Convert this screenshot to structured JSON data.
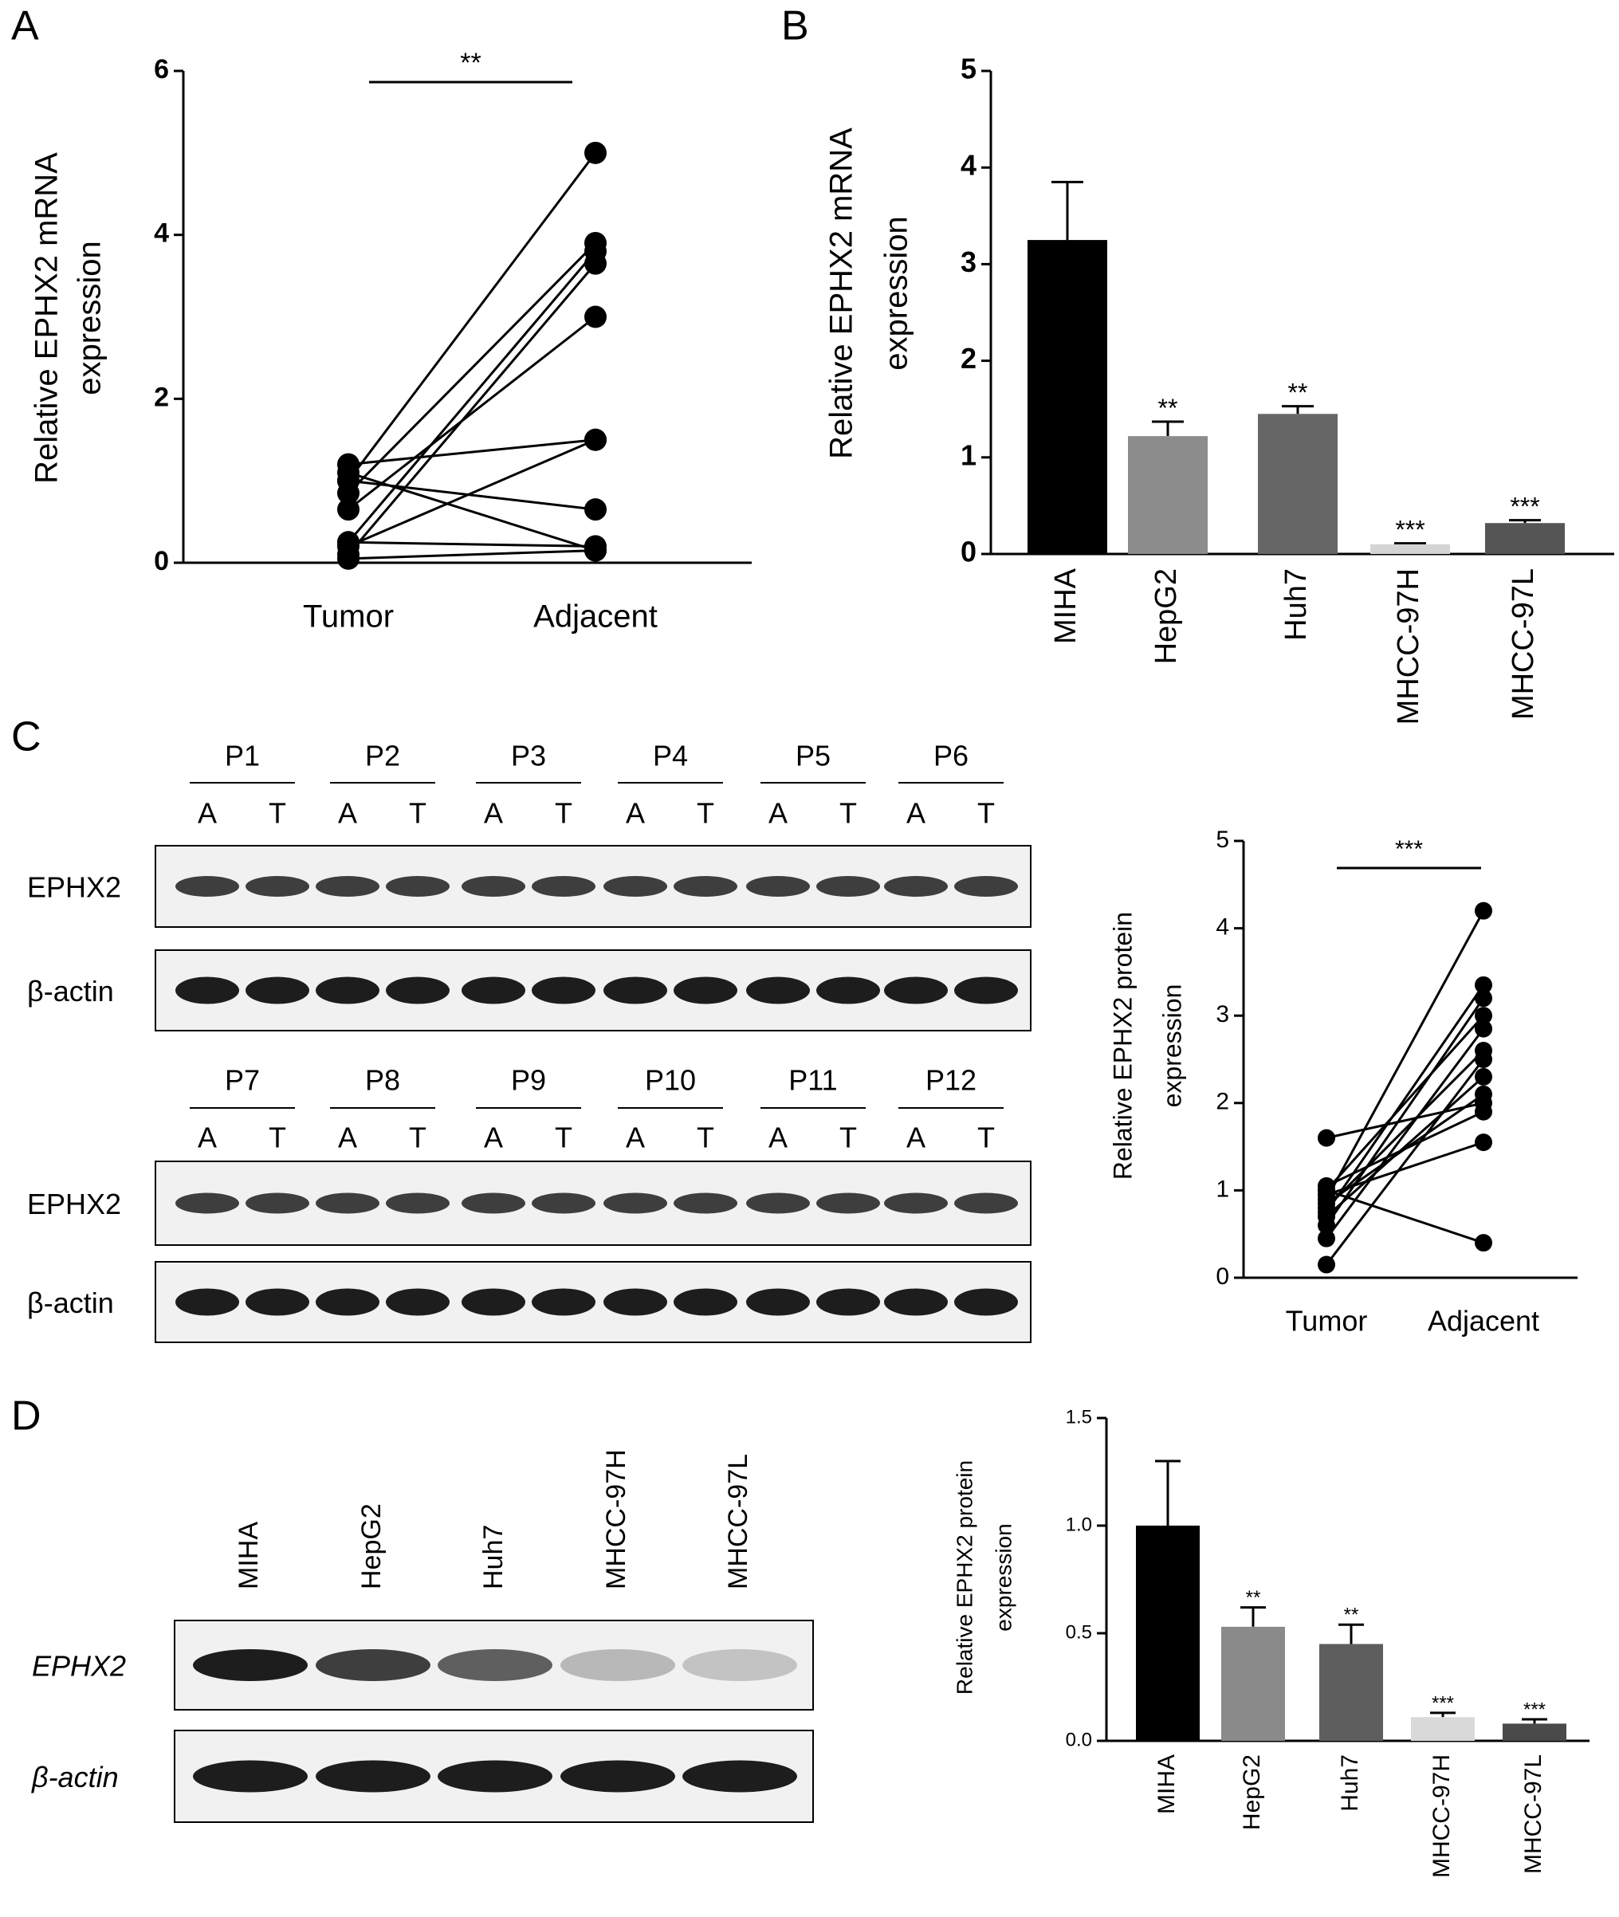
{
  "panel_labels": [
    "A",
    "B",
    "C",
    "D"
  ],
  "blot_c": {
    "groups": [
      [
        "P1",
        "P2",
        "P3",
        "P4",
        "P5",
        "P6"
      ],
      [
        "P7",
        "P8",
        "P9",
        "P10",
        "P11",
        "P12"
      ]
    ],
    "lane_labels": [
      "A",
      "T"
    ],
    "rows": [
      "EPHX2",
      "β-actin"
    ]
  },
  "blot_d": {
    "lanes": [
      "MIHA",
      "HepG2",
      "Huh7",
      "MHCC-97H",
      "MHCC-97L"
    ],
    "rows": [
      "EPHX2",
      "β-actin"
    ]
  },
  "chart_data": [
    {
      "type": "paired",
      "categories": [
        "Tumor",
        "Adjacent"
      ],
      "ylabel": [
        "Relative EPHX2 mRNA",
        "expression"
      ],
      "ylim": [
        0,
        6
      ],
      "yticks": [
        0,
        2,
        4,
        6
      ],
      "annotation": "**",
      "color": "#000000",
      "series": [
        {
          "values": [
            1.0,
            5.0
          ]
        },
        {
          "values": [
            0.85,
            3.9
          ]
        },
        {
          "values": [
            0.25,
            3.8
          ]
        },
        {
          "values": [
            0.1,
            3.65
          ]
        },
        {
          "values": [
            0.65,
            3.0
          ]
        },
        {
          "values": [
            1.2,
            1.5
          ]
        },
        {
          "values": [
            0.2,
            1.5
          ]
        },
        {
          "values": [
            1.0,
            0.65
          ]
        },
        {
          "values": [
            1.1,
            0.15
          ]
        },
        {
          "values": [
            0.25,
            0.2
          ]
        },
        {
          "values": [
            0.05,
            0.15
          ]
        }
      ]
    },
    {
      "type": "bar",
      "categories": [
        "MIHA",
        "HepG2",
        "Huh7",
        "MHCC-97H",
        "MHCC-97L"
      ],
      "ylabel": [
        "Relative EPHX2 mRNA",
        "expression"
      ],
      "values": [
        3.25,
        1.22,
        1.45,
        0.1,
        0.32
      ],
      "errors": [
        0.6,
        0.15,
        0.08,
        0.01,
        0.03
      ],
      "annotations": [
        null,
        "**",
        "**",
        "***",
        "***"
      ],
      "colors": [
        "#000000",
        "#8c8c8c",
        "#666666",
        "#d4d4d4",
        "#555555"
      ],
      "ylim": [
        0,
        5
      ],
      "yticks": [
        0,
        1,
        2,
        3,
        4,
        5
      ]
    },
    {
      "type": "paired",
      "categories": [
        "Tumor",
        "Adjacent"
      ],
      "ylabel": [
        "Relative EPHX2 protein",
        "expression"
      ],
      "ylim": [
        0,
        5
      ],
      "yticks": [
        0,
        1,
        2,
        3,
        4,
        5
      ],
      "annotation": "***",
      "color": "#000000",
      "series": [
        {
          "values": [
            0.9,
            4.2
          ]
        },
        {
          "values": [
            0.75,
            3.35
          ]
        },
        {
          "values": [
            0.6,
            3.2
          ]
        },
        {
          "values": [
            1.0,
            3.0
          ]
        },
        {
          "values": [
            0.45,
            2.85
          ]
        },
        {
          "values": [
            0.8,
            2.6
          ]
        },
        {
          "values": [
            0.15,
            2.5
          ]
        },
        {
          "values": [
            0.7,
            2.3
          ]
        },
        {
          "values": [
            0.85,
            2.1
          ]
        },
        {
          "values": [
            1.6,
            2.0
          ]
        },
        {
          "values": [
            0.95,
            1.55
          ]
        },
        {
          "values": [
            1.0,
            0.4
          ]
        },
        {
          "values": [
            1.05,
            1.9
          ]
        }
      ]
    },
    {
      "type": "bar",
      "categories": [
        "MIHA",
        "HepG2",
        "Huh7",
        "MHCC-97H",
        "MHCC-97L"
      ],
      "ylabel": [
        "Relative EPHX2 protein",
        "expression"
      ],
      "values": [
        1.0,
        0.53,
        0.45,
        0.11,
        0.08
      ],
      "errors": [
        0.3,
        0.09,
        0.09,
        0.02,
        0.02
      ],
      "annotations": [
        null,
        "**",
        "**",
        "***",
        "***"
      ],
      "colors": [
        "#000000",
        "#8a8a8a",
        "#5e5e5e",
        "#d9d9d9",
        "#4a4a4a"
      ],
      "ylim": [
        0,
        1.5
      ],
      "yticks": [
        {
          "value": 0,
          "label": "0.0"
        },
        {
          "value": 0.5,
          "label": "0.5"
        },
        {
          "value": 1,
          "label": "1.0"
        },
        {
          "value": 1.5,
          "label": "1.5"
        }
      ]
    }
  ]
}
